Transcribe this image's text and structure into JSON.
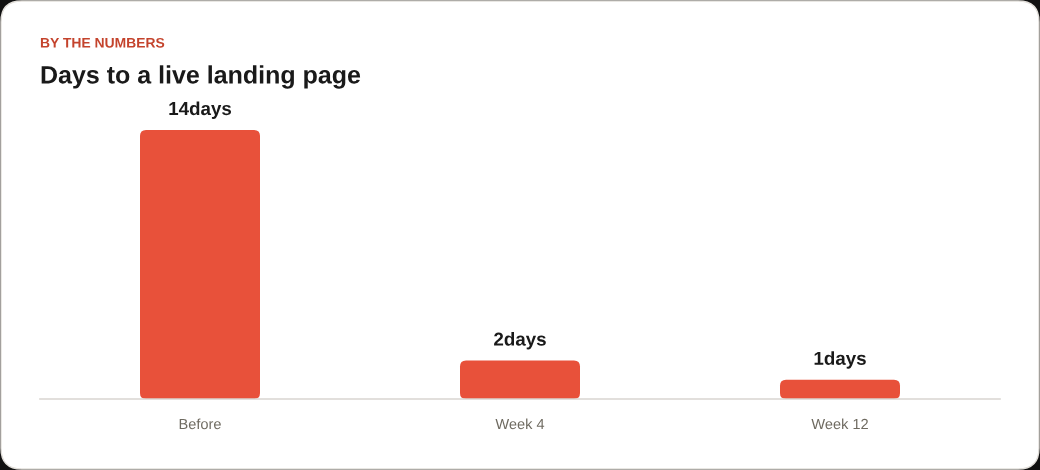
{
  "chart_data": {
    "type": "bar",
    "subtitle": "BY THE NUMBERS",
    "title": "Days to a live landing page",
    "categories": [
      "Before",
      "Week 4",
      "Week 12"
    ],
    "values": [
      14,
      2,
      1
    ],
    "color": "#e8513a",
    "value_labels": [
      "14days",
      "2days",
      "1days"
    ]
  }
}
